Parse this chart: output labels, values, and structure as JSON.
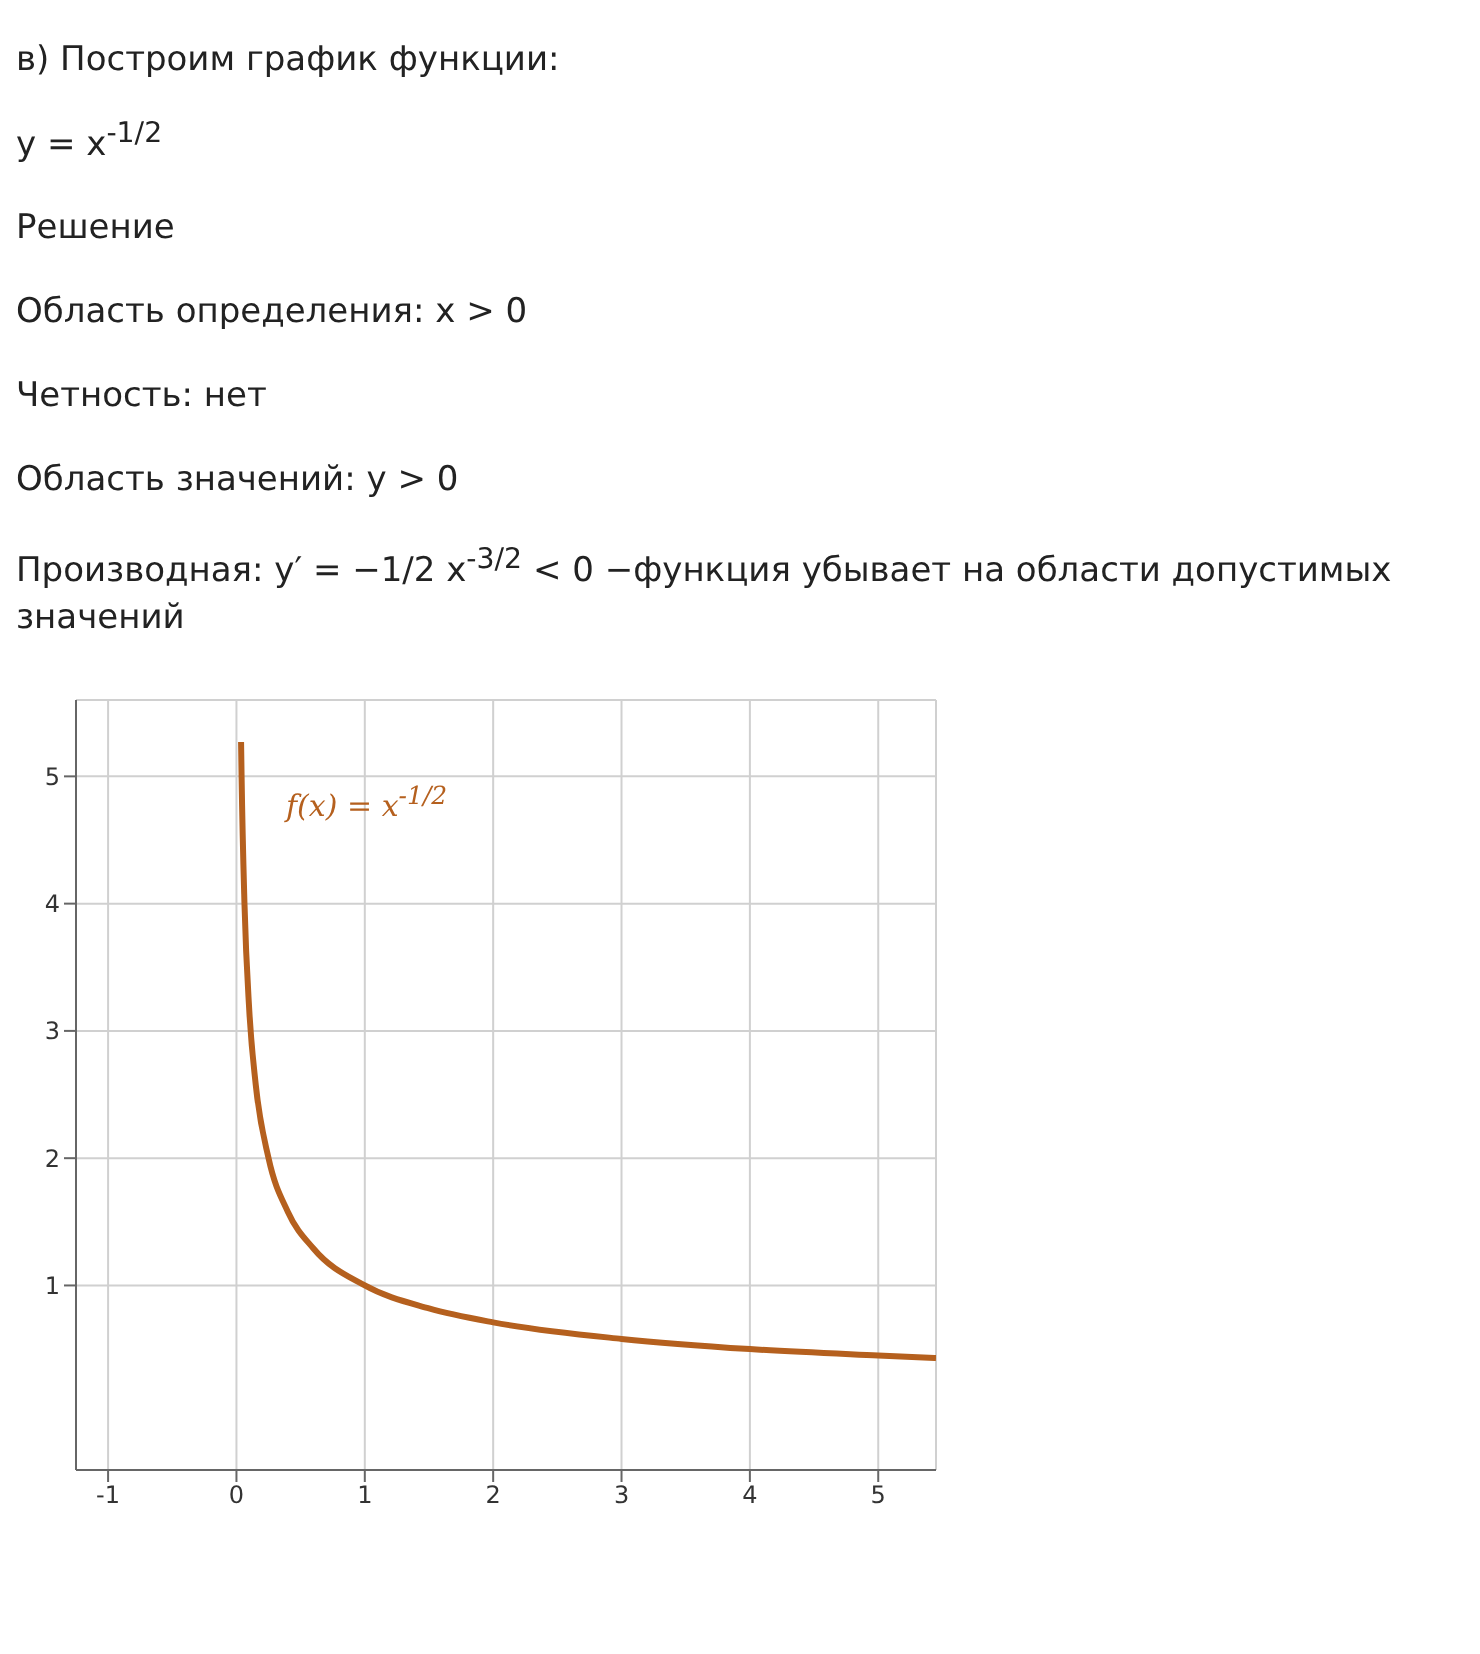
{
  "chart_data": {
    "type": "line",
    "title": "в) Построим график функции:",
    "annotations": [
      "y = x$^{-1/2}$",
      "Решение",
      "Область определения: x > 0",
      "Четность: нет",
      "Область значений: y > 0",
      "Производная: y′ = −1/2 x$^{-3/2}$ < 0 −функция убывает на области допустимых значений"
    ],
    "x": [
      0.036,
      0.04,
      0.0625,
      0.1,
      0.15,
      0.25,
      0.4,
      0.6,
      1,
      1.5,
      2,
      3,
      4,
      5,
      5.45
    ],
    "series": [
      {
        "name": "f(x) = x$^{-1/2}$",
        "color": "#b5601e",
        "values": [
          5.27,
          5,
          4,
          3.16,
          2.58,
          2,
          1.58,
          1.29,
          1,
          0.82,
          0.71,
          0.58,
          0.5,
          0.45,
          0.43
        ]
      }
    ],
    "xlim": [
      -1.25,
      5.45
    ],
    "ylim": [
      -0.45,
      5.6
    ],
    "xticks": [
      -1,
      0,
      1,
      2,
      3,
      4,
      5
    ],
    "yticks": [
      1,
      2,
      3,
      4,
      5
    ],
    "grid": true,
    "marker": "none",
    "line_style": "solid"
  }
}
